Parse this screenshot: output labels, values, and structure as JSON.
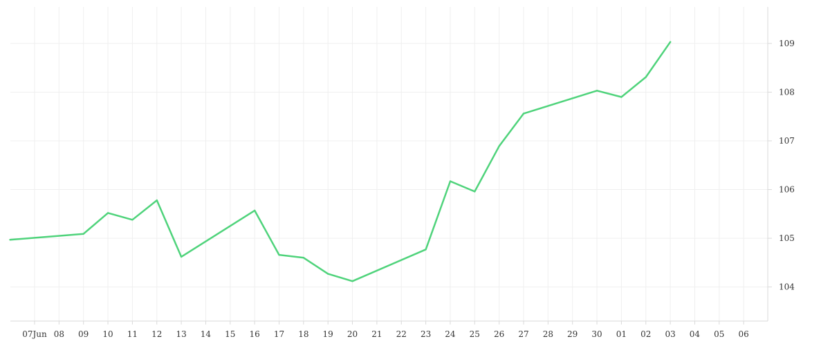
{
  "chart_data": {
    "type": "line",
    "title": "",
    "xlabel": "",
    "ylabel": "",
    "x_ticks": [
      "07Jun",
      "08",
      "09",
      "10",
      "11",
      "12",
      "13",
      "14",
      "15",
      "16",
      "17",
      "18",
      "19",
      "20",
      "21",
      "22",
      "23",
      "24",
      "25",
      "26",
      "27",
      "28",
      "29",
      "30",
      "01",
      "02",
      "03",
      "04",
      "05",
      "06"
    ],
    "y_ticks": [
      104,
      105,
      106,
      107,
      108,
      109
    ],
    "ylim": [
      103.3,
      109.75
    ],
    "y_axis_position": "right",
    "grid": true,
    "legend": "none",
    "series": [
      {
        "color": "#4fd37b",
        "x": [
          "2023-06-06",
          "2023-06-09",
          "2023-06-10",
          "2023-06-11",
          "2023-06-12",
          "2023-06-13",
          "2023-06-16",
          "2023-06-17",
          "2023-06-18",
          "2023-06-19",
          "2023-06-20",
          "2023-06-23",
          "2023-06-24",
          "2023-06-25",
          "2023-06-26",
          "2023-06-27",
          "2023-06-30",
          "2023-07-01",
          "2023-07-02",
          "2023-07-03"
        ],
        "values": [
          104.97,
          105.09,
          105.52,
          105.38,
          105.78,
          104.62,
          105.57,
          104.66,
          104.6,
          104.27,
          104.12,
          104.77,
          106.17,
          105.96,
          106.89,
          107.56,
          108.03,
          107.9,
          108.31,
          109.03
        ]
      }
    ]
  }
}
